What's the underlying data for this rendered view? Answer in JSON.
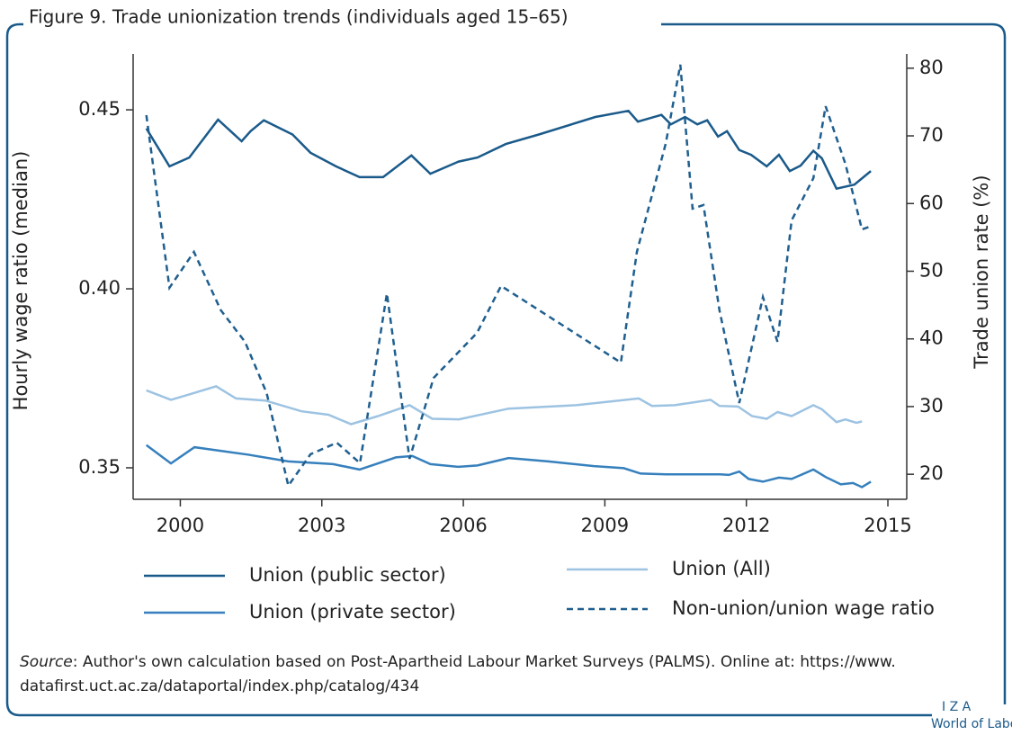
{
  "chart_data": {
    "type": "line",
    "title": "Figure 9. Trade unionization trends (individuals aged 15–65)",
    "y_label": "Hourly wage ratio (median)",
    "y2_label": "Trade union rate (%)",
    "xlim": [
      1999.0,
      2015.4
    ],
    "xticks": [
      2000,
      2003,
      2006,
      2009,
      2012,
      2015
    ],
    "ylim": [
      0.3412,
      0.4656
    ],
    "yticks": [
      0.35,
      {
        "value": 0.4,
        "label": "0.40"
      },
      0.45
    ],
    "y2lim": [
      16.3,
      82.1
    ],
    "y2ticks": [
      20,
      30,
      40,
      50,
      60,
      70,
      80
    ],
    "series": [
      {
        "name": "Union (public sector)",
        "color": "#1a5a8a",
        "axis": "y2",
        "linestyle": "solid",
        "x": [
          1999.28,
          1999.77,
          2000.19,
          2000.8,
          2001.3,
          2001.49,
          2001.77,
          2002.38,
          2002.76,
          2003.3,
          2003.8,
          2004.3,
          2004.9,
          2005.3,
          2005.9,
          2006.3,
          2006.9,
          2007.6,
          2008.8,
          2009.5,
          2009.7,
          2010.2,
          2010.4,
          2010.7,
          2010.96,
          2011.17,
          2011.4,
          2011.59,
          2011.85,
          2012.1,
          2012.43,
          2012.69,
          2012.92,
          2013.15,
          2013.42,
          2013.6,
          2013.91,
          2014.29,
          2014.64
        ],
        "values": [
          71.1,
          65.5,
          66.8,
          72.4,
          69.2,
          70.7,
          72.3,
          70.2,
          67.5,
          65.5,
          63.9,
          63.9,
          67.1,
          64.4,
          66.2,
          66.8,
          68.8,
          70.2,
          72.8,
          73.7,
          72.1,
          73.1,
          71.7,
          72.8,
          71.7,
          72.3,
          69.9,
          70.7,
          67.9,
          67.2,
          65.5,
          67.2,
          64.8,
          65.6,
          67.8,
          66.7,
          62.2,
          62.8,
          64.8
        ]
      },
      {
        "name": "Union (private sector)",
        "color": "#3680bd",
        "axis": "y2",
        "linestyle": "solid",
        "x": [
          1999.28,
          1999.8,
          2000.3,
          2001.43,
          2002.29,
          2003.24,
          2003.8,
          2004.57,
          2004.92,
          2005.3,
          2005.9,
          2006.3,
          2006.96,
          2007.8,
          2008.77,
          2009.4,
          2009.76,
          2010.3,
          2011.44,
          2011.63,
          2011.85,
          2012.05,
          2012.35,
          2012.69,
          2012.96,
          2013.42,
          2013.68,
          2014.0,
          2014.26,
          2014.45,
          2014.64
        ],
        "values": [
          24.3,
          21.6,
          24.0,
          22.9,
          21.9,
          21.5,
          20.7,
          22.5,
          22.7,
          21.5,
          21.1,
          21.3,
          22.4,
          21.9,
          21.2,
          20.9,
          20.1,
          20.0,
          20.0,
          19.9,
          20.4,
          19.3,
          18.9,
          19.5,
          19.3,
          20.7,
          19.6,
          18.5,
          18.7,
          18.1,
          18.9
        ]
      },
      {
        "name": "Union (All)",
        "color": "#9dc3e2",
        "axis": "y2",
        "linestyle": "solid",
        "x": [
          1999.28,
          1999.8,
          2000.19,
          2000.76,
          2001.18,
          2001.8,
          2002.57,
          2003.14,
          2003.62,
          2004.19,
          2004.86,
          2005.34,
          2005.9,
          2006.96,
          2008.39,
          2009.72,
          2010.0,
          2010.48,
          2011.24,
          2011.43,
          2011.82,
          2012.12,
          2012.43,
          2012.66,
          2012.96,
          2013.42,
          2013.6,
          2013.91,
          2014.1,
          2014.33,
          2014.45
        ],
        "values": [
          32.4,
          31.0,
          31.8,
          33.0,
          31.2,
          30.9,
          29.3,
          28.8,
          27.4,
          28.6,
          30.2,
          28.2,
          28.1,
          29.7,
          30.2,
          31.2,
          30.1,
          30.2,
          31.0,
          30.1,
          30.0,
          28.6,
          28.2,
          29.2,
          28.6,
          30.2,
          29.6,
          27.7,
          28.1,
          27.6,
          27.8
        ]
      },
      {
        "name": "Non-union/union wage ratio",
        "color": "#1f5f8f",
        "axis": "y",
        "linestyle": "dashed",
        "x": [
          1999.28,
          1999.77,
          2000.29,
          2000.86,
          2001.37,
          2001.83,
          2002.29,
          2002.76,
          2003.32,
          2003.81,
          2004.38,
          2004.86,
          2005.37,
          2006.29,
          2006.8,
          2009.34,
          2009.68,
          2010.29,
          2010.6,
          2010.86,
          2011.09,
          2011.43,
          2011.85,
          2012.35,
          2012.66,
          2012.96,
          2013.42,
          2013.68,
          2014.1,
          2014.45,
          2014.6
        ],
        "values": [
          0.4485,
          0.4003,
          0.4103,
          0.394,
          0.3852,
          0.3709,
          0.345,
          0.3538,
          0.357,
          0.3513,
          0.3987,
          0.3525,
          0.3751,
          0.3877,
          0.4008,
          0.3794,
          0.4103,
          0.4405,
          0.4626,
          0.4224,
          0.4234,
          0.394,
          0.3681,
          0.3977,
          0.3852,
          0.4191,
          0.4309,
          0.451,
          0.4349,
          0.4166,
          0.4173
        ]
      }
    ]
  },
  "source": {
    "label": "Source",
    "text": ": Author's own calculation based on Post-Apartheid Labour Market Surveys (PALMS). Online at: https://www.",
    "text2": "datafirst.uct.ac.za/dataportal/index.php/catalog/434"
  },
  "logo": {
    "mark": "I Z A",
    "name": "World of Labor"
  }
}
